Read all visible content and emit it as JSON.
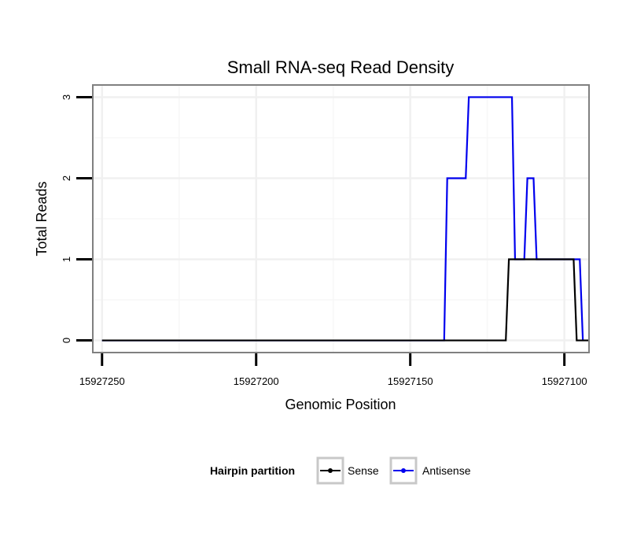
{
  "chart_data": {
    "type": "line",
    "title": "Small RNA-seq Read Density",
    "xlabel": "Genomic Position",
    "ylabel": "Total Reads",
    "xlim": [
      15927253,
      15927092
    ],
    "x_reversed": true,
    "ylim": [
      -0.15,
      3.15
    ],
    "x_ticks": [
      15927250,
      15927200,
      15927150,
      15927100
    ],
    "x_tick_labels": [
      "15927250",
      "15927200",
      "15927150",
      "15927100"
    ],
    "y_ticks": [
      0,
      1,
      2,
      3
    ],
    "y_tick_labels": [
      "0",
      "1",
      "2",
      "3"
    ],
    "grid": true,
    "legend": {
      "title": "Hairpin partition",
      "position": "bottom"
    },
    "series": [
      {
        "name": "Sense",
        "color": "#000000",
        "x": [
          15927250,
          15927119,
          15927118,
          15927097,
          15927096,
          15927092
        ],
        "y": [
          0,
          0,
          1,
          1,
          0,
          0
        ]
      },
      {
        "name": "Antisense",
        "color": "#0000ee",
        "x": [
          15927250,
          15927139,
          15927138,
          15927132,
          15927131,
          15927117,
          15927116,
          15927113,
          15927112,
          15927110,
          15927109,
          15927095,
          15927094
        ],
        "y": [
          0,
          0,
          2,
          2,
          3,
          3,
          1,
          1,
          2,
          2,
          1,
          1,
          0
        ]
      }
    ]
  }
}
